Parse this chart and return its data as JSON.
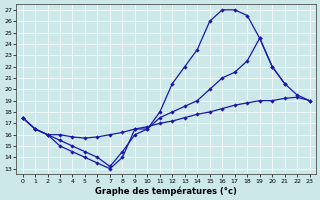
{
  "xlabel": "Graphe des températures (°c)",
  "bg_color": "#cce8e8",
  "grid_color": "#ffffff",
  "line_color": "#1a1aaa",
  "xlim": [
    -0.5,
    23.5
  ],
  "ylim": [
    12.5,
    27.5
  ],
  "xticks": [
    0,
    1,
    2,
    3,
    4,
    5,
    6,
    7,
    8,
    9,
    10,
    11,
    12,
    13,
    14,
    15,
    16,
    17,
    18,
    19,
    20,
    21,
    22,
    23
  ],
  "yticks": [
    13,
    14,
    15,
    16,
    17,
    18,
    19,
    20,
    21,
    22,
    23,
    24,
    25,
    26,
    27
  ],
  "line1_x": [
    0,
    1,
    2,
    3,
    4,
    5,
    6,
    7,
    8,
    9,
    10,
    11,
    12,
    13,
    14,
    15,
    16,
    17,
    18,
    19,
    20,
    21
  ],
  "line1_y": [
    17.5,
    16.5,
    16.0,
    15.0,
    14.5,
    14.0,
    13.5,
    13.0,
    14.0,
    16.5,
    16.5,
    18.0,
    20.5,
    22.0,
    23.5,
    26.0,
    27.0,
    27.0,
    26.5,
    24.5,
    22.0,
    20.5
  ],
  "line2_x": [
    0,
    1,
    2,
    3,
    4,
    5,
    6,
    7,
    8,
    9,
    10,
    11,
    12,
    13,
    14,
    15,
    16,
    17,
    18,
    19,
    20,
    21,
    22,
    23
  ],
  "line2_y": [
    17.5,
    16.5,
    16.0,
    16.0,
    15.8,
    15.7,
    15.8,
    16.0,
    16.2,
    16.5,
    16.7,
    17.0,
    17.2,
    17.5,
    17.8,
    18.0,
    18.3,
    18.6,
    18.8,
    19.0,
    19.0,
    19.2,
    19.3,
    19.0
  ],
  "line3_x": [
    0,
    1,
    2,
    3,
    4,
    5,
    6,
    7,
    8,
    9,
    10,
    11,
    12,
    13,
    14,
    15,
    16,
    17,
    18,
    19,
    20,
    21,
    22,
    23
  ],
  "line3_y": [
    17.5,
    16.5,
    16.0,
    15.5,
    15.0,
    14.5,
    14.0,
    13.2,
    14.5,
    16.0,
    16.5,
    17.5,
    18.0,
    18.5,
    19.0,
    20.0,
    21.0,
    21.5,
    22.5,
    24.5,
    22.0,
    20.5,
    19.5,
    19.0
  ],
  "xlabel_fontsize": 6,
  "tick_fontsize": 4.5,
  "lw": 0.9,
  "ms": 2.2
}
